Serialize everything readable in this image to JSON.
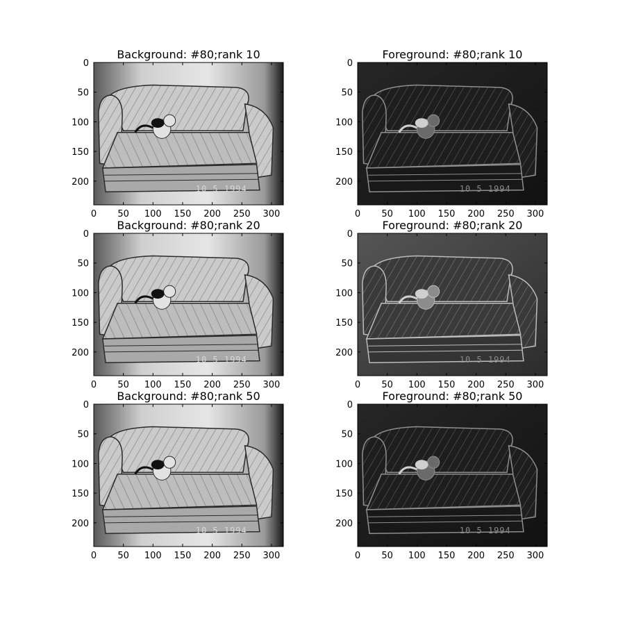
{
  "chart_data": {
    "type": "image-grid",
    "grid": {
      "rows": 3,
      "cols": 2
    },
    "image_extent": {
      "width": 320,
      "height": 240
    },
    "xticks": [
      0,
      50,
      100,
      150,
      200,
      250,
      300
    ],
    "yticks": [
      0,
      50,
      100,
      150,
      200
    ],
    "xlim": [
      0,
      320
    ],
    "ylim": [
      240,
      0
    ],
    "colormap": "gray",
    "image_caption_text": "10   5  1994",
    "panels": [
      {
        "title": "Background: #80;rank 10",
        "kind": "background",
        "rank": 10
      },
      {
        "title": "Foreground: #80;rank 10",
        "kind": "foreground",
        "rank": 10
      },
      {
        "title": "Background: #80;rank 20",
        "kind": "background",
        "rank": 20
      },
      {
        "title": "Foreground: #80;rank 20",
        "kind": "foreground",
        "rank": 20
      },
      {
        "title": "Background: #80;rank 50",
        "kind": "background",
        "rank": 50
      },
      {
        "title": "Foreground: #80;rank 50",
        "kind": "foreground",
        "rank": 50
      }
    ]
  }
}
